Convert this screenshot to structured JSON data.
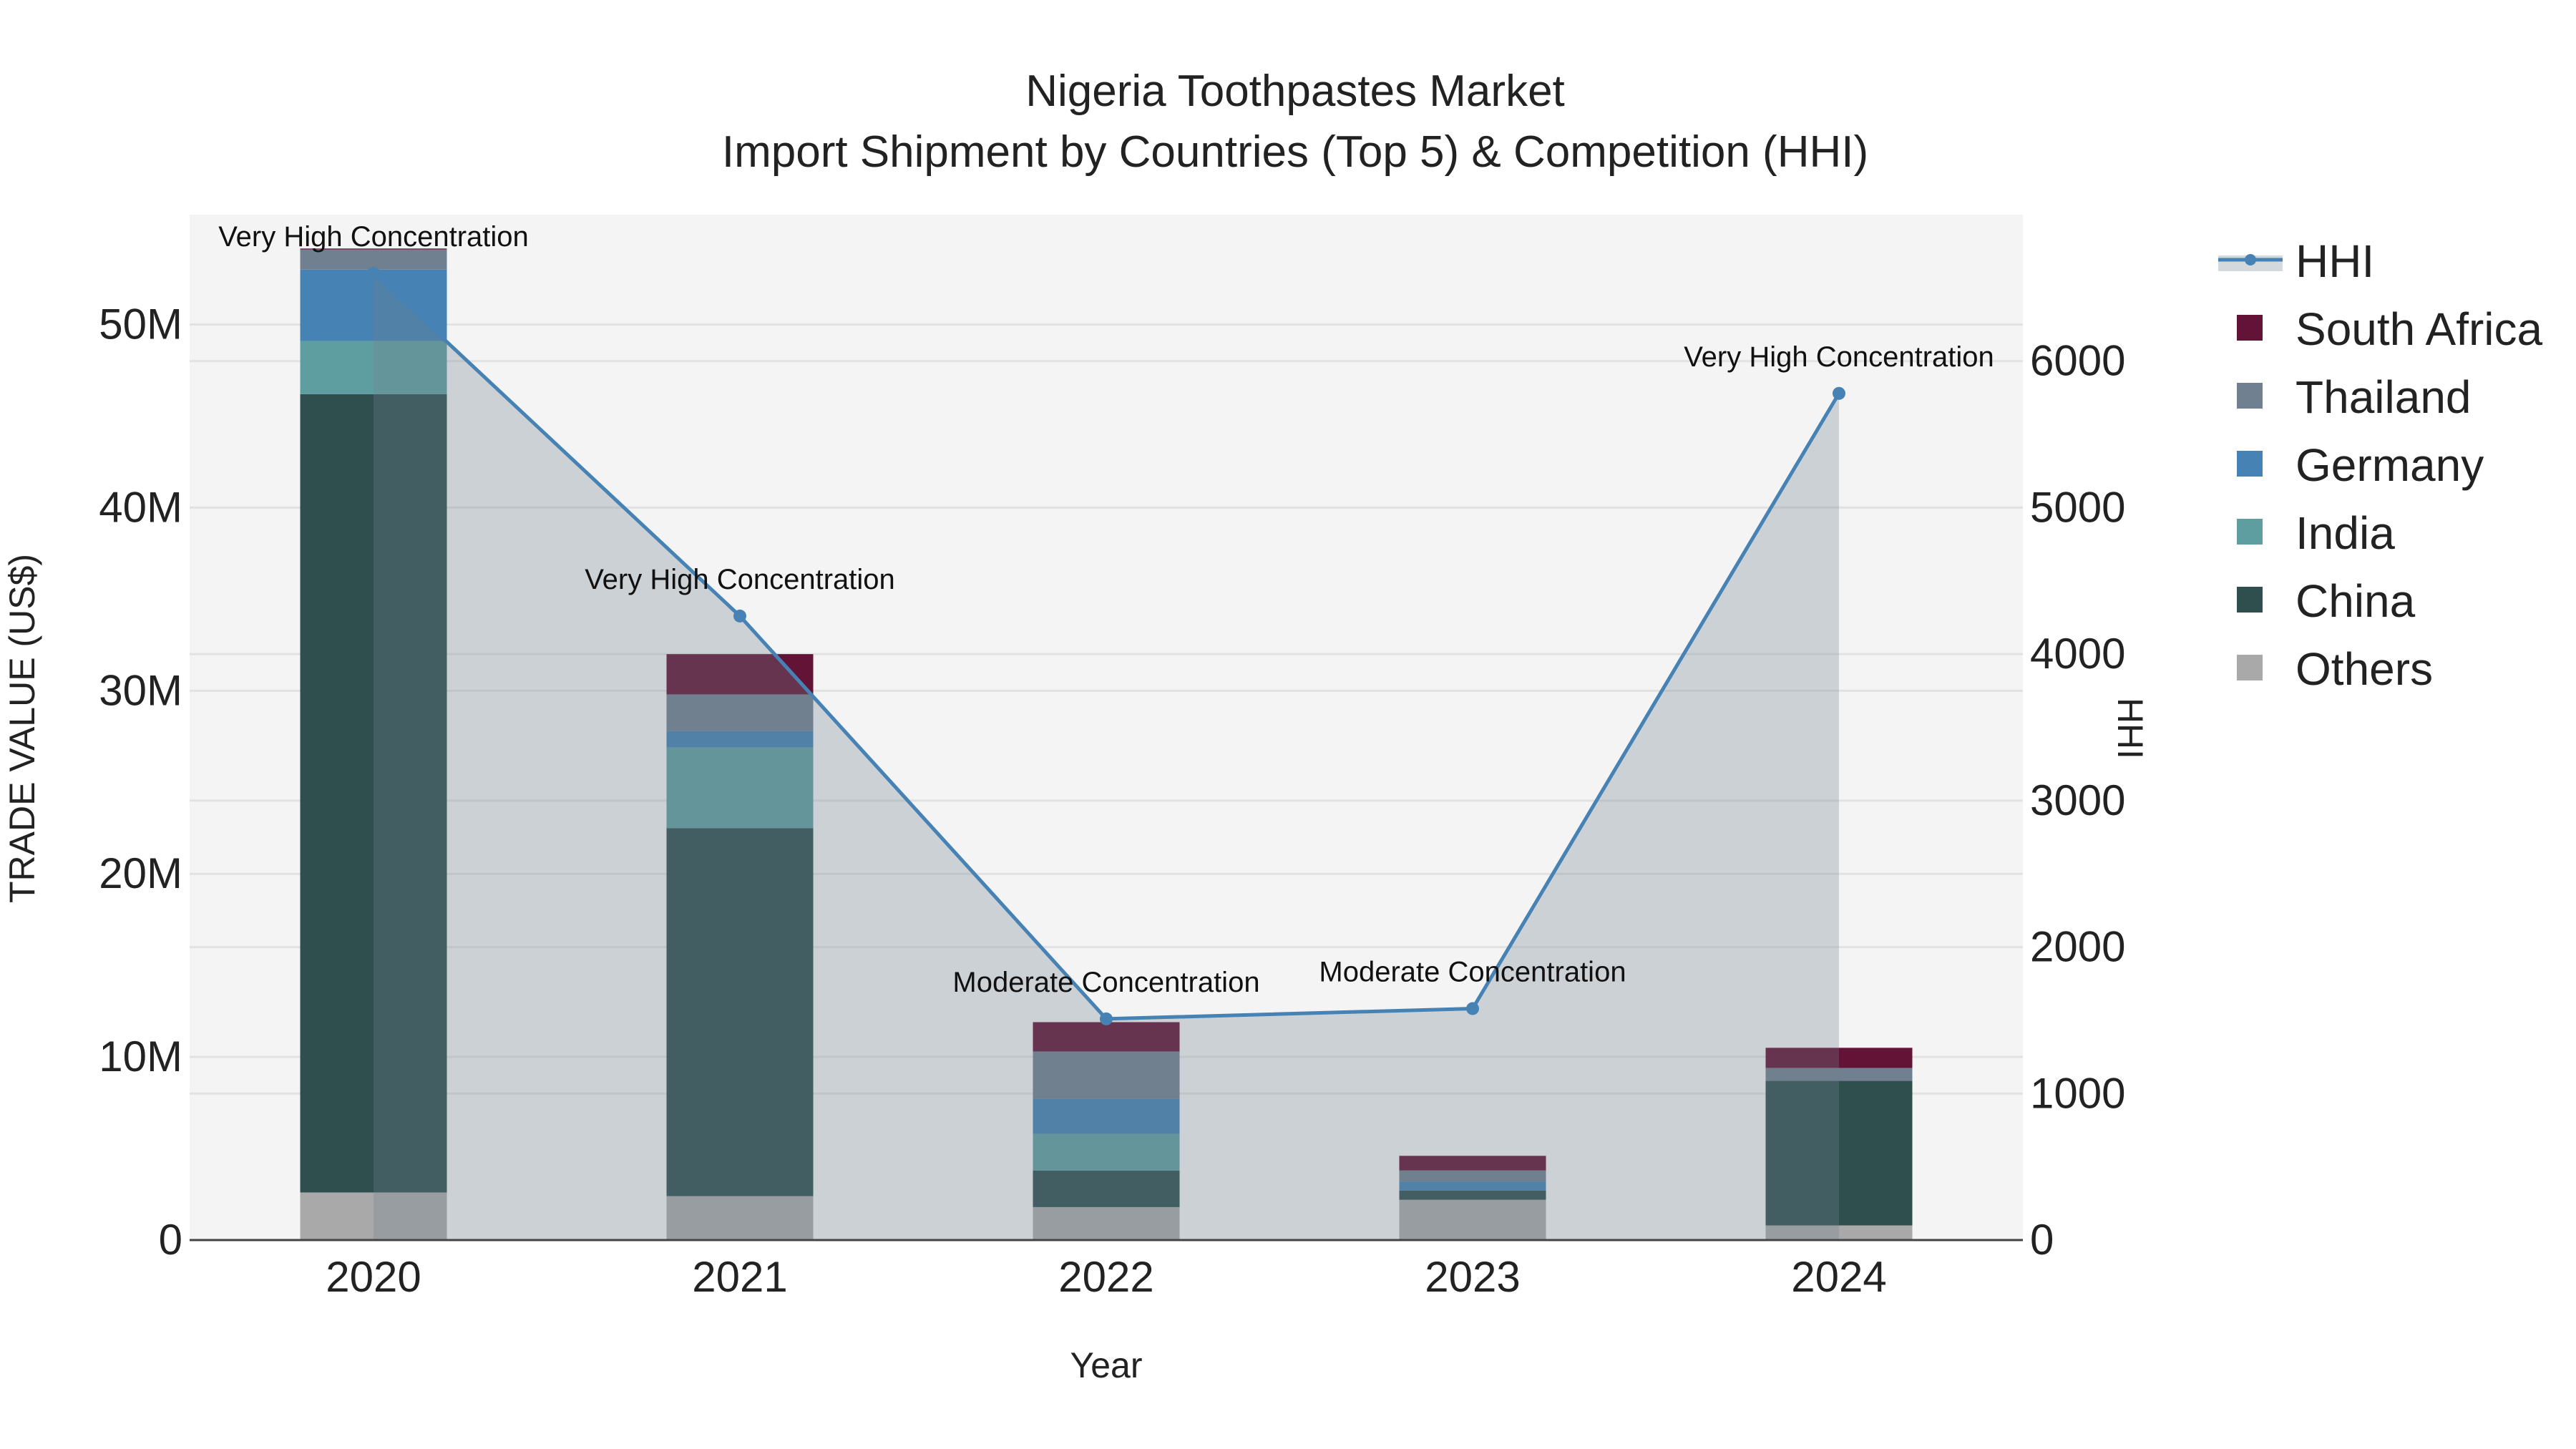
{
  "chart_data": {
    "type": "bar",
    "title": "Nigeria Toothpastes Market",
    "subtitle": "Import Shipment by Countries (Top 5) & Competition (HHI)",
    "xlabel": "Year",
    "ylabel": "TRADE VALUE (US$)",
    "y2label": "HHI",
    "categories": [
      "2020",
      "2021",
      "2022",
      "2023",
      "2024"
    ],
    "ylim": [
      0,
      56
    ],
    "y_unit": "M",
    "yticks": [
      0,
      10,
      20,
      30,
      40,
      50
    ],
    "ytick_labels": [
      "0",
      "10M",
      "20M",
      "30M",
      "40M",
      "50M"
    ],
    "y2lim": [
      0,
      7000
    ],
    "y2ticks": [
      0,
      1000,
      2000,
      3000,
      4000,
      5000,
      6000
    ],
    "y2tick_labels": [
      "0",
      "1000",
      "2000",
      "3000",
      "4000",
      "5000",
      "6000"
    ],
    "stacked": true,
    "series": [
      {
        "name": "Others",
        "color": "#A9A9A9",
        "values": [
          2.6,
          2.4,
          1.8,
          2.2,
          0.8
        ]
      },
      {
        "name": "China",
        "color": "#2F4F4F",
        "values": [
          43.6,
          20.1,
          2.0,
          0.5,
          7.9
        ]
      },
      {
        "name": "India",
        "color": "#5F9EA0",
        "values": [
          2.9,
          4.4,
          2.0,
          0.0,
          0.0
        ]
      },
      {
        "name": "Germany",
        "color": "#4682B4",
        "values": [
          3.9,
          0.9,
          1.9,
          0.5,
          0.0
        ]
      },
      {
        "name": "Thailand",
        "color": "#708090",
        "values": [
          1.1,
          2.0,
          2.6,
          0.6,
          0.7
        ]
      },
      {
        "name": "South Africa",
        "color": "#631336",
        "values": [
          0.05,
          2.2,
          1.6,
          0.8,
          1.1
        ]
      }
    ],
    "hhi": {
      "name": "HHI",
      "color": "#4682B4",
      "values": [
        6600,
        4260,
        1510,
        1580,
        5780
      ],
      "annotations": [
        "Very High Concentration",
        "Very High Concentration",
        "Moderate Concentration",
        "Moderate Concentration",
        "Very High Concentration"
      ]
    },
    "legend_order": [
      "HHI",
      "South Africa",
      "Thailand",
      "Germany",
      "India",
      "China",
      "Others"
    ],
    "legend_position": "right",
    "grid": true
  }
}
